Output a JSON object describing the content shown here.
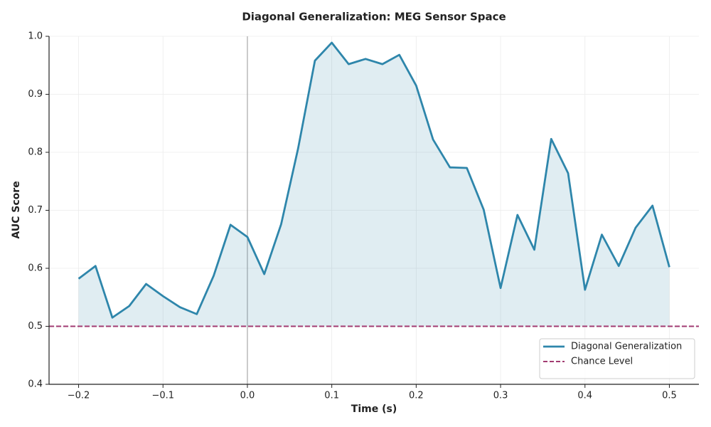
{
  "chart_data": {
    "type": "line",
    "title": "Diagonal Generalization: MEG Sensor Space",
    "xlabel": "Time (s)",
    "ylabel": "AUC Score",
    "x": [
      -0.2,
      -0.18,
      -0.16,
      -0.14,
      -0.12,
      -0.1,
      -0.08,
      -0.06,
      -0.04,
      -0.02,
      0.0,
      0.02,
      0.04,
      0.06,
      0.08,
      0.1,
      0.12,
      0.14,
      0.16,
      0.18,
      0.2,
      0.22,
      0.24,
      0.26,
      0.28,
      0.3,
      0.32,
      0.34,
      0.36,
      0.38,
      0.4,
      0.42,
      0.44,
      0.46,
      0.48,
      0.5
    ],
    "series": [
      {
        "name": "Diagonal Generalization",
        "color": "#2e86ab",
        "values": [
          0.582,
          0.604,
          0.515,
          0.535,
          0.573,
          0.552,
          0.533,
          0.521,
          0.587,
          0.675,
          0.654,
          0.59,
          0.676,
          0.806,
          0.958,
          0.989,
          0.952,
          0.961,
          0.952,
          0.968,
          0.915,
          0.822,
          0.774,
          0.773,
          0.701,
          0.566,
          0.692,
          0.632,
          0.823,
          0.764,
          0.563,
          0.658,
          0.604,
          0.67,
          0.708,
          0.602
        ]
      }
    ],
    "hline": {
      "name": "Chance Level",
      "value": 0.5,
      "color": "#a23b72"
    },
    "vline": {
      "value": 0,
      "color": "#999999"
    },
    "xlim": [
      -0.235,
      0.535
    ],
    "ylim": [
      0.4,
      1.0
    ],
    "xticks": [
      {
        "value": -0.2,
        "label": "−0.2"
      },
      {
        "value": -0.1,
        "label": "−0.1"
      },
      {
        "value": 0,
        "label": "0.0"
      },
      0.1,
      0.2,
      0.3,
      0.4,
      0.5
    ],
    "yticks": [
      0.4,
      0.5,
      0.6,
      0.7,
      0.8,
      0.9,
      {
        "value": 1.0,
        "label": "1.0"
      }
    ],
    "grid": true,
    "legend": "lower right"
  }
}
